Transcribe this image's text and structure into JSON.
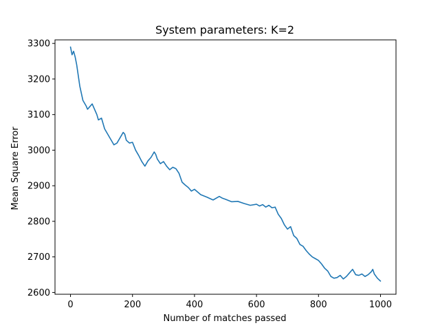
{
  "chart_data": {
    "type": "line",
    "title": "System parameters: K=2",
    "xlabel": "Number of matches passed",
    "ylabel": "Mean Square Error",
    "xlim": [
      -50,
      1050
    ],
    "ylim": [
      2595,
      3310
    ],
    "x_ticks": [
      0,
      200,
      400,
      600,
      800,
      1000
    ],
    "y_ticks": [
      2600,
      2700,
      2800,
      2900,
      3000,
      3100,
      3200,
      3300
    ],
    "grid": false,
    "series": [
      {
        "color": "#1f77b4",
        "x": [
          0,
          5,
          10,
          15,
          20,
          25,
          30,
          40,
          50,
          55,
          60,
          70,
          80,
          85,
          90,
          100,
          110,
          120,
          130,
          140,
          150,
          160,
          170,
          175,
          180,
          190,
          200,
          210,
          220,
          230,
          240,
          250,
          260,
          270,
          275,
          280,
          290,
          300,
          310,
          320,
          330,
          340,
          350,
          360,
          370,
          380,
          390,
          400,
          420,
          440,
          460,
          480,
          490,
          500,
          520,
          540,
          560,
          580,
          600,
          610,
          620,
          630,
          640,
          650,
          660,
          670,
          680,
          690,
          700,
          710,
          720,
          730,
          740,
          750,
          760,
          770,
          780,
          790,
          800,
          810,
          820,
          830,
          840,
          850,
          860,
          870,
          880,
          890,
          900,
          910,
          920,
          930,
          940,
          950,
          960,
          970,
          975,
          980,
          990,
          1000
        ],
        "values": [
          3290,
          3268,
          3278,
          3262,
          3240,
          3210,
          3180,
          3140,
          3125,
          3115,
          3120,
          3130,
          3110,
          3100,
          3085,
          3090,
          3060,
          3045,
          3030,
          3015,
          3020,
          3035,
          3050,
          3045,
          3028,
          3020,
          3022,
          3000,
          2985,
          2968,
          2955,
          2970,
          2980,
          2995,
          2988,
          2975,
          2962,
          2968,
          2955,
          2945,
          2952,
          2948,
          2935,
          2910,
          2902,
          2895,
          2885,
          2890,
          2875,
          2868,
          2860,
          2870,
          2865,
          2862,
          2855,
          2856,
          2850,
          2845,
          2848,
          2843,
          2847,
          2840,
          2845,
          2838,
          2840,
          2820,
          2808,
          2790,
          2778,
          2785,
          2760,
          2752,
          2735,
          2730,
          2718,
          2708,
          2700,
          2695,
          2690,
          2680,
          2668,
          2660,
          2645,
          2640,
          2642,
          2648,
          2638,
          2645,
          2655,
          2665,
          2650,
          2648,
          2652,
          2645,
          2650,
          2658,
          2665,
          2652,
          2640,
          2632
        ]
      }
    ]
  }
}
